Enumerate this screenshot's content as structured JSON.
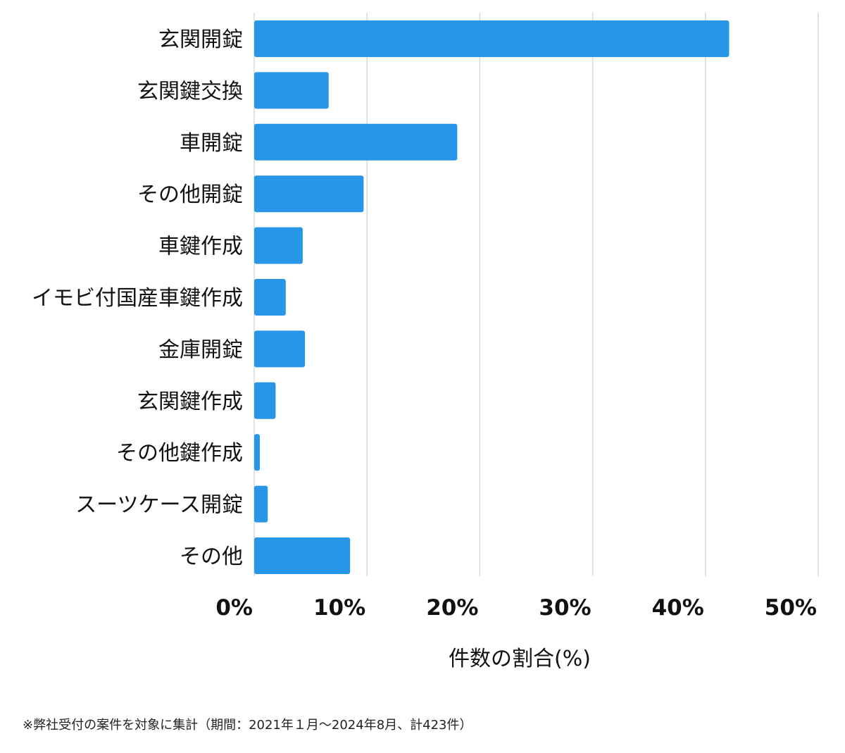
{
  "chart_data": {
    "type": "bar",
    "orientation": "horizontal",
    "categories": [
      "玄関開錠",
      "玄関鍵交換",
      "車開錠",
      "その他開錠",
      "車鍵作成",
      "イモビ付国産車鍵作成",
      "金庫開錠",
      "玄関鍵作成",
      "その他鍵作成",
      "スーツケース開錠",
      "その他"
    ],
    "values": [
      42.1,
      6.6,
      18.0,
      9.7,
      4.3,
      2.8,
      4.5,
      1.9,
      0.5,
      1.2,
      8.5
    ],
    "xlim": [
      0,
      50
    ],
    "ticks": [
      0,
      10,
      20,
      30,
      40,
      50
    ],
    "tick_labels": [
      "0%",
      "10%",
      "20%",
      "30%",
      "40%",
      "50%"
    ],
    "xlabel": "件数の割合(%)",
    "ylabel": "",
    "title": "",
    "grid": true,
    "bar_color": "#2896E6",
    "grid_color": "#d9d9d9"
  },
  "footnote": "※弊社受付の案件を対象に集計（期間：2021年１月〜2024年8月、計423件）"
}
